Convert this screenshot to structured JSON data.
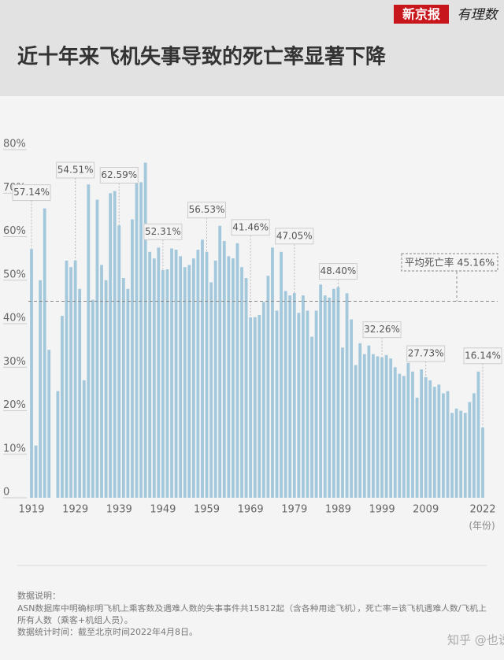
{
  "header": {
    "logo": "新京报",
    "logo_sub": "有理数"
  },
  "chart_data": {
    "type": "bar",
    "title": "近十年来飞机失事导致的死亡率显著下降",
    "x_unit": "(年份)",
    "color": "#a3c8dc",
    "categories": [
      "1919",
      null,
      null,
      null,
      null,
      null,
      null,
      null,
      null,
      null,
      "1929",
      null,
      null,
      null,
      null,
      null,
      null,
      null,
      null,
      null,
      "1939",
      null,
      null,
      null,
      null,
      null,
      null,
      null,
      null,
      null,
      "1949",
      null,
      null,
      null,
      null,
      null,
      null,
      null,
      null,
      null,
      "1959",
      null,
      null,
      null,
      null,
      null,
      null,
      null,
      null,
      null,
      "1969",
      null,
      null,
      null,
      null,
      null,
      null,
      null,
      null,
      null,
      "1979",
      null,
      null,
      null,
      null,
      null,
      null,
      null,
      null,
      null,
      "1989",
      null,
      null,
      null,
      null,
      null,
      null,
      null,
      null,
      null,
      "1999",
      null,
      null,
      null,
      null,
      null,
      null,
      null,
      null,
      null,
      "2009",
      null,
      null,
      null,
      null,
      null,
      null,
      null,
      null,
      null,
      null,
      null,
      null,
      "2022"
    ],
    "values": [
      57.14,
      12,
      50,
      66.5,
      34,
      0,
      24.5,
      41.8,
      54.5,
      53,
      54.51,
      48,
      27,
      72,
      45.5,
      68.5,
      53.5,
      50,
      70,
      70.5,
      62.59,
      50.5,
      48,
      64,
      72.5,
      72.5,
      77,
      56.5,
      55,
      57.5,
      52.31,
      52.5,
      57.3,
      57,
      55.5,
      53,
      53.5,
      55,
      57,
      59.3,
      56.53,
      49.5,
      54.5,
      62.5,
      59,
      55.5,
      55,
      58.5,
      53,
      50.5,
      41.46,
      41.5,
      42,
      45,
      51,
      57.5,
      43,
      56.5,
      47.5,
      46.5,
      47.05,
      42.5,
      46.5,
      43,
      37,
      43,
      49,
      46.5,
      46,
      48,
      48.4,
      34.5,
      47,
      41,
      30.5,
      35.5,
      33,
      35,
      33,
      32.5,
      32.26,
      32.8,
      32,
      30,
      28.5,
      28,
      31,
      29,
      23,
      29.5,
      27.73,
      27,
      25.5,
      26,
      24,
      24.5,
      19.5,
      20.5,
      20,
      19.5,
      22,
      24,
      29,
      16.14
    ],
    "value_labels": [
      "57.14%",
      null,
      null,
      null,
      null,
      null,
      null,
      null,
      null,
      null,
      "54.51%",
      null,
      null,
      null,
      null,
      null,
      null,
      null,
      null,
      null,
      "62.59%",
      null,
      null,
      null,
      null,
      null,
      null,
      null,
      null,
      null,
      "52.31%",
      null,
      null,
      null,
      null,
      null,
      null,
      null,
      null,
      null,
      "56.53%",
      null,
      null,
      null,
      null,
      null,
      null,
      null,
      null,
      null,
      "41.46%",
      null,
      null,
      null,
      null,
      null,
      null,
      null,
      null,
      null,
      "47.05%",
      null,
      null,
      null,
      null,
      null,
      null,
      null,
      null,
      null,
      "48.40%",
      null,
      null,
      null,
      null,
      null,
      null,
      null,
      null,
      null,
      "32.26%",
      null,
      null,
      null,
      null,
      null,
      null,
      null,
      null,
      null,
      "27.73%",
      null,
      null,
      null,
      null,
      null,
      null,
      null,
      null,
      null,
      null,
      null,
      null,
      "16.14%"
    ],
    "ylim": [
      0,
      80
    ],
    "yticks": [
      0,
      {
        "value": 10,
        "label": "10%"
      },
      {
        "value": 20,
        "label": "20%"
      },
      {
        "value": 30,
        "label": "30%"
      },
      {
        "value": 40,
        "label": "40%"
      },
      {
        "value": 50,
        "label": "50%"
      },
      {
        "value": 60,
        "label": "60%"
      },
      {
        "value": 70,
        "label": "70%"
      },
      {
        "value": 80,
        "label": "80%"
      }
    ],
    "average": {
      "value": 45.16,
      "label": "平均死亡率 45.16%"
    }
  },
  "notes": [
    "数据说明：",
    "ASN数据库中明确标明飞机上乘客数及遇难人数的失事事件共15812起（含各种用途飞机），死亡率=该飞机遇难人数/飞机上",
    "所有人数（乘客+机组人员）。",
    "数据统计时间：截至北京时间2022年4月8日。"
  ],
  "watermark": "知乎 @也说"
}
